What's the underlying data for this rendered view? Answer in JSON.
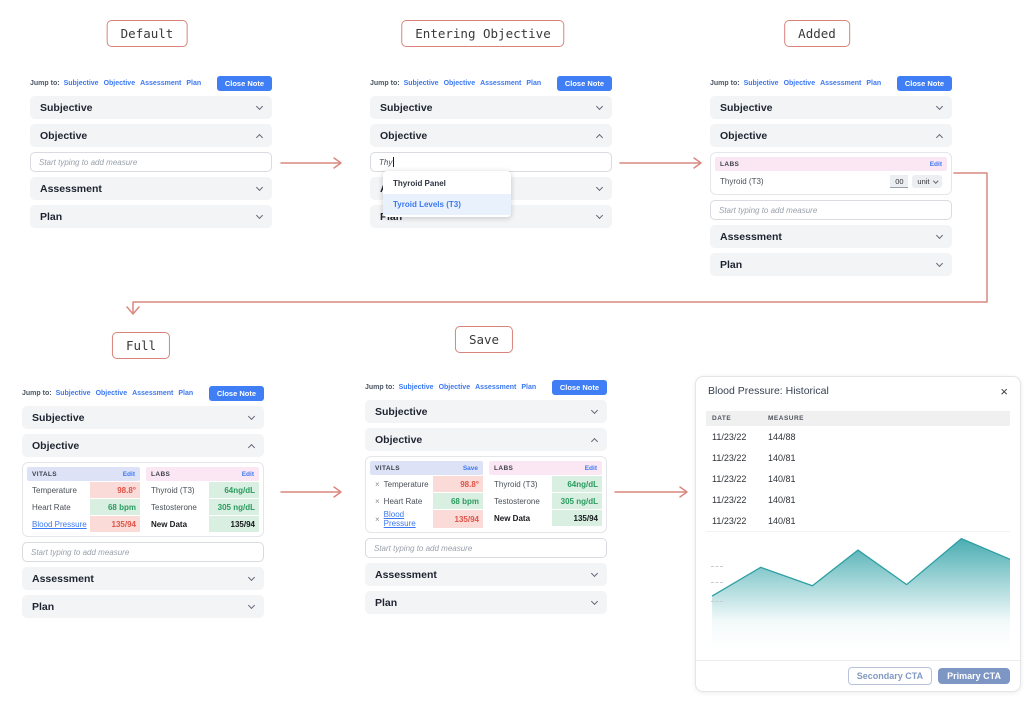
{
  "stages": {
    "s1": "Default",
    "s2": "Entering Objective",
    "s3": "Added",
    "s4": "Full",
    "s5": "Save"
  },
  "note": {
    "jump_label": "Jump to:",
    "links": {
      "subjective": "Subjective",
      "objective": "Objective",
      "assessment": "Assessment",
      "plan": "Plan"
    },
    "close_note": "Close Note",
    "acc": {
      "subjective": "Subjective",
      "objective": "Objective",
      "assessment": "Assessment",
      "plan": "Plan"
    },
    "placeholder": "Start typing to add measure"
  },
  "entering": {
    "typed": "Thy",
    "suggestions": [
      {
        "label": "Thyroid Panel",
        "selected": false
      },
      {
        "label": "Tyroid Levels (T3)",
        "selected": true
      }
    ]
  },
  "added": {
    "labs_title": "LABS",
    "edit": "Edit",
    "measure": "Thyroid (T3)",
    "value": "00",
    "unit": "unit"
  },
  "measures": {
    "vitals_title": "VITALS",
    "labs_title": "LABS",
    "edit": "Edit",
    "save": "Save",
    "remove": "×",
    "vitals": [
      {
        "name": "Temperature",
        "value": "98.8°",
        "status": "abnormal"
      },
      {
        "name": "Heart Rate",
        "value": "68 bpm",
        "status": "normal"
      },
      {
        "name": "Blood Pressure",
        "value": "135/94",
        "status": "abnormal"
      }
    ],
    "labs": [
      {
        "name": "Thyroid (T3)",
        "value": "64ng/dL",
        "status": "normal"
      },
      {
        "name": "Testosterone",
        "value": "305 ng/dL",
        "status": "normal"
      },
      {
        "name": "New Data",
        "value": "135/94",
        "status": "normal"
      }
    ]
  },
  "modal": {
    "title": "Blood Pressure: Historical",
    "close": "×",
    "col_date": "DATE",
    "col_measure": "MEASURE",
    "rows": [
      {
        "date": "11/23/22",
        "measure": "144/88"
      },
      {
        "date": "11/23/22",
        "measure": "140/81"
      },
      {
        "date": "11/23/22",
        "measure": "140/81"
      },
      {
        "date": "11/23/22",
        "measure": "140/81"
      },
      {
        "date": "11/23/22",
        "measure": "140/81"
      }
    ],
    "secondary": "Secondary CTA",
    "primary": "Primary CTA"
  },
  "chart_data": {
    "type": "area",
    "title": "Blood Pressure: Historical",
    "xlabel": "",
    "ylabel": "",
    "axes_visible": false,
    "legend": "none",
    "grid": false,
    "ylim": [
      0,
      100
    ],
    "points": [
      {
        "x": 2,
        "v": 46
      },
      {
        "x": 18,
        "v": 71
      },
      {
        "x": 35,
        "v": 55
      },
      {
        "x": 50,
        "v": 86
      },
      {
        "x": 66,
        "v": 56
      },
      {
        "x": 84,
        "v": 96
      },
      {
        "x": 100,
        "v": 78
      }
    ],
    "left_tick_pcts": [
      28,
      42,
      58
    ],
    "line_color": "#2d9fa4",
    "fill_color": "#3aa6ab",
    "note": "Unlabeled decorative blood-pressure trend; values are relative units read from pixel heights"
  },
  "colors": {
    "accent_blue": "#3b78f2",
    "close_note_bg": "#3f7ef4",
    "arrow": "#d9897f",
    "vitals_header_bg": "#dde2f7",
    "labs_header_bg": "#fbe7f3",
    "abnormal_text": "#df5449",
    "abnormal_bg": "#fadbd7",
    "normal_text": "#2a9b5f",
    "normal_bg": "#d9efe1",
    "primary_cta_bg": "#7e96c3",
    "secondary_cta_color": "#8299c2",
    "chart_teal": "#2d9fa4"
  }
}
